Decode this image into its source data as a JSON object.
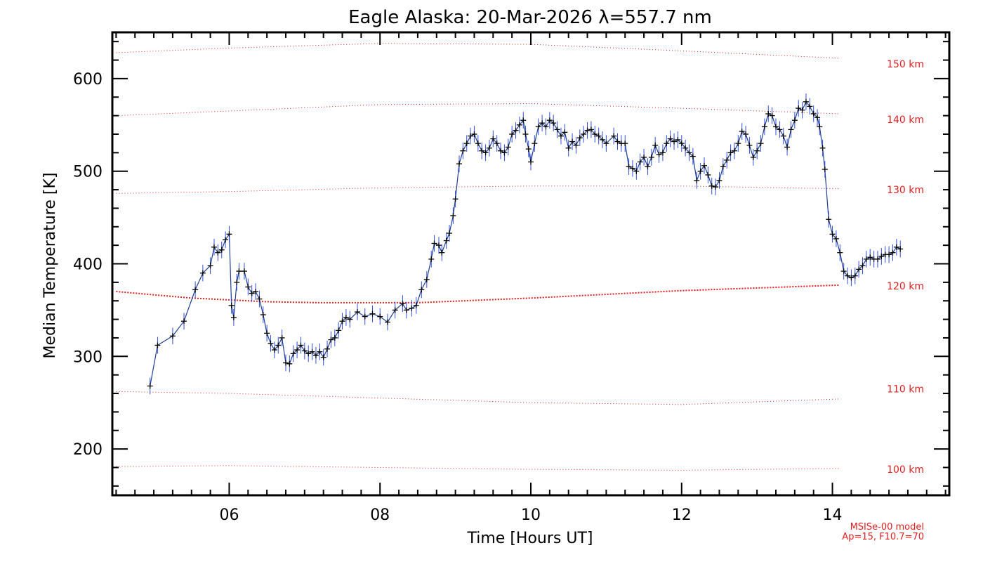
{
  "colors": {
    "data_line": "#1f3f8f",
    "error_bar": "#2f4fe0",
    "marker": "#000000",
    "model": "#e02020",
    "frame": "#000000"
  },
  "chart_data": {
    "type": "line",
    "title": "Eagle Alaska: 20-Mar-2026 λ=557.7 nm",
    "xlabel": "Time [Hours UT]",
    "ylabel": "Median Temperature [K]",
    "xlim": [
      4.45,
      15.55
    ],
    "ylim": [
      150,
      650
    ],
    "x_ticks": [
      6,
      8,
      10,
      12,
      14
    ],
    "x_tick_labels": [
      "06",
      "08",
      "10",
      "12",
      "14"
    ],
    "y_ticks": [
      200,
      300,
      400,
      500,
      600
    ],
    "y_tick_labels": [
      "200",
      "300",
      "400",
      "500",
      "600"
    ],
    "series": [
      {
        "name": "Median Temperature",
        "error": 9,
        "points": [
          [
            4.95,
            268
          ],
          [
            5.05,
            312
          ],
          [
            5.25,
            322
          ],
          [
            5.4,
            338
          ],
          [
            5.55,
            372
          ],
          [
            5.65,
            390
          ],
          [
            5.75,
            398
          ],
          [
            5.8,
            418
          ],
          [
            5.85,
            412
          ],
          [
            5.9,
            415
          ],
          [
            5.95,
            426
          ],
          [
            6.0,
            432
          ],
          [
            6.03,
            355
          ],
          [
            6.06,
            342
          ],
          [
            6.1,
            380
          ],
          [
            6.13,
            392
          ],
          [
            6.2,
            392
          ],
          [
            6.25,
            375
          ],
          [
            6.3,
            368
          ],
          [
            6.35,
            370
          ],
          [
            6.4,
            362
          ],
          [
            6.45,
            345
          ],
          [
            6.5,
            325
          ],
          [
            6.55,
            314
          ],
          [
            6.6,
            307
          ],
          [
            6.65,
            312
          ],
          [
            6.7,
            320
          ],
          [
            6.75,
            293
          ],
          [
            6.8,
            292
          ],
          [
            6.85,
            303
          ],
          [
            6.9,
            307
          ],
          [
            6.95,
            312
          ],
          [
            7.0,
            306
          ],
          [
            7.05,
            303
          ],
          [
            7.1,
            305
          ],
          [
            7.15,
            301
          ],
          [
            7.2,
            305
          ],
          [
            7.25,
            299
          ],
          [
            7.3,
            308
          ],
          [
            7.35,
            318
          ],
          [
            7.4,
            320
          ],
          [
            7.45,
            328
          ],
          [
            7.5,
            338
          ],
          [
            7.55,
            342
          ],
          [
            7.6,
            340
          ],
          [
            7.7,
            348
          ],
          [
            7.8,
            343
          ],
          [
            7.9,
            346
          ],
          [
            8.0,
            343
          ],
          [
            8.1,
            337
          ],
          [
            8.2,
            350
          ],
          [
            8.3,
            357
          ],
          [
            8.35,
            350
          ],
          [
            8.42,
            352
          ],
          [
            8.48,
            355
          ],
          [
            8.55,
            372
          ],
          [
            8.62,
            383
          ],
          [
            8.68,
            405
          ],
          [
            8.72,
            422
          ],
          [
            8.78,
            420
          ],
          [
            8.82,
            412
          ],
          [
            8.88,
            425
          ],
          [
            8.92,
            433
          ],
          [
            8.97,
            452
          ],
          [
            9.0,
            470
          ],
          [
            9.05,
            508
          ],
          [
            9.1,
            522
          ],
          [
            9.15,
            530
          ],
          [
            9.2,
            538
          ],
          [
            9.25,
            540
          ],
          [
            9.3,
            530
          ],
          [
            9.35,
            522
          ],
          [
            9.4,
            520
          ],
          [
            9.45,
            525
          ],
          [
            9.5,
            535
          ],
          [
            9.55,
            530
          ],
          [
            9.6,
            522
          ],
          [
            9.65,
            520
          ],
          [
            9.7,
            526
          ],
          [
            9.75,
            540
          ],
          [
            9.8,
            544
          ],
          [
            9.85,
            550
          ],
          [
            9.9,
            555
          ],
          [
            9.93,
            540
          ],
          [
            9.97,
            524
          ],
          [
            10.0,
            510
          ],
          [
            10.05,
            530
          ],
          [
            10.1,
            548
          ],
          [
            10.15,
            552
          ],
          [
            10.2,
            548
          ],
          [
            10.25,
            555
          ],
          [
            10.3,
            552
          ],
          [
            10.35,
            545
          ],
          [
            10.4,
            538
          ],
          [
            10.45,
            542
          ],
          [
            10.5,
            525
          ],
          [
            10.55,
            532
          ],
          [
            10.6,
            528
          ],
          [
            10.65,
            536
          ],
          [
            10.7,
            540
          ],
          [
            10.75,
            544
          ],
          [
            10.8,
            545
          ],
          [
            10.85,
            540
          ],
          [
            10.9,
            538
          ],
          [
            10.95,
            534
          ],
          [
            11.0,
            530
          ],
          [
            11.1,
            538
          ],
          [
            11.15,
            532
          ],
          [
            11.2,
            530
          ],
          [
            11.25,
            530
          ],
          [
            11.3,
            505
          ],
          [
            11.35,
            503
          ],
          [
            11.4,
            500
          ],
          [
            11.45,
            510
          ],
          [
            11.5,
            515
          ],
          [
            11.55,
            505
          ],
          [
            11.6,
            515
          ],
          [
            11.65,
            528
          ],
          [
            11.7,
            518
          ],
          [
            11.75,
            520
          ],
          [
            11.8,
            530
          ],
          [
            11.85,
            535
          ],
          [
            11.9,
            532
          ],
          [
            11.95,
            534
          ],
          [
            12.0,
            530
          ],
          [
            12.05,
            525
          ],
          [
            12.1,
            520
          ],
          [
            12.15,
            516
          ],
          [
            12.2,
            490
          ],
          [
            12.25,
            500
          ],
          [
            12.3,
            506
          ],
          [
            12.35,
            496
          ],
          [
            12.4,
            484
          ],
          [
            12.45,
            483
          ],
          [
            12.5,
            490
          ],
          [
            12.55,
            505
          ],
          [
            12.6,
            512
          ],
          [
            12.65,
            520
          ],
          [
            12.7,
            522
          ],
          [
            12.75,
            530
          ],
          [
            12.8,
            543
          ],
          [
            12.85,
            540
          ],
          [
            12.9,
            528
          ],
          [
            12.95,
            515
          ],
          [
            13.0,
            522
          ],
          [
            13.05,
            530
          ],
          [
            13.1,
            548
          ],
          [
            13.15,
            562
          ],
          [
            13.2,
            560
          ],
          [
            13.25,
            548
          ],
          [
            13.3,
            545
          ],
          [
            13.35,
            538
          ],
          [
            13.4,
            526
          ],
          [
            13.45,
            545
          ],
          [
            13.5,
            555
          ],
          [
            13.55,
            568
          ],
          [
            13.6,
            566
          ],
          [
            13.65,
            575
          ],
          [
            13.7,
            570
          ],
          [
            13.75,
            562
          ],
          [
            13.8,
            558
          ],
          [
            13.83,
            548
          ],
          [
            13.87,
            525
          ],
          [
            13.9,
            502
          ],
          [
            13.95,
            448
          ],
          [
            14.0,
            432
          ],
          [
            14.05,
            427
          ],
          [
            14.1,
            412
          ],
          [
            14.15,
            392
          ],
          [
            14.2,
            387
          ],
          [
            14.25,
            385
          ],
          [
            14.3,
            387
          ],
          [
            14.35,
            394
          ],
          [
            14.4,
            398
          ],
          [
            14.45,
            405
          ],
          [
            14.5,
            407
          ],
          [
            14.55,
            405
          ],
          [
            14.6,
            405
          ],
          [
            14.65,
            408
          ],
          [
            14.7,
            410
          ],
          [
            14.75,
            410
          ],
          [
            14.8,
            412
          ],
          [
            14.85,
            418
          ],
          [
            14.9,
            416
          ]
        ]
      }
    ],
    "model_curves": [
      {
        "label": "100 km",
        "x": [
          4.5,
          6.0,
          8.0,
          10.0,
          12.0,
          14.1
        ],
        "y": [
          181,
          182,
          180,
          178,
          177,
          179
        ]
      },
      {
        "label": "110 km",
        "x": [
          4.5,
          6.0,
          8.0,
          10.0,
          12.0,
          14.1
        ],
        "y": [
          262,
          260,
          255,
          250,
          248,
          254
        ]
      },
      {
        "label": "120 km",
        "x": [
          4.5,
          5.5,
          6.5,
          7.2,
          8.5,
          10.0,
          12.0,
          14.1
        ],
        "y": [
          370,
          363,
          359,
          358,
          358,
          363,
          371,
          377
        ]
      },
      {
        "label": "130 km",
        "x": [
          4.5,
          6.0,
          8.0,
          10.0,
          12.0,
          14.1
        ],
        "y": [
          476,
          478,
          482,
          484,
          484,
          481
        ]
      },
      {
        "label": "140 km",
        "x": [
          4.5,
          6.0,
          8.0,
          10.0,
          12.0,
          14.1
        ],
        "y": [
          560,
          565,
          572,
          573,
          568,
          562
        ]
      },
      {
        "label": "150 km",
        "x": [
          4.5,
          6.0,
          8.0,
          10.0,
          12.0,
          14.1
        ],
        "y": [
          628,
          633,
          638,
          637,
          630,
          622
        ]
      }
    ],
    "model_label_positions": [
      178,
      265,
      376,
      480,
      556,
      616
    ],
    "model_note": [
      "MSISe-00 model",
      "Ap=15, F10.7=70"
    ]
  }
}
